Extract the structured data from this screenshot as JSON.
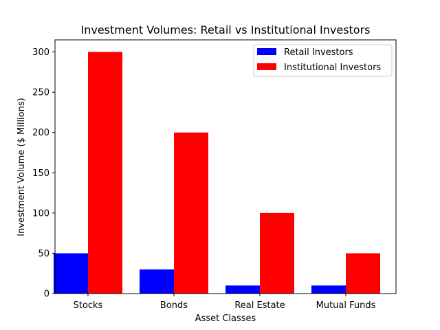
{
  "chart_data": {
    "type": "bar",
    "title": "Investment Volumes: Retail vs Institutional Investors",
    "xlabel": "Asset Classes",
    "ylabel": "Investment Volume ($ Millions)",
    "categories": [
      "Stocks",
      "Bonds",
      "Real Estate",
      "Mutual Funds"
    ],
    "series": [
      {
        "name": "Retail Investors",
        "values": [
          50,
          30,
          10,
          10
        ],
        "color": "#0000ff"
      },
      {
        "name": "Institutional Investors",
        "values": [
          300,
          200,
          100,
          50
        ],
        "color": "#ff0000"
      }
    ],
    "ylim": [
      0,
      315
    ],
    "yticks": [
      0,
      50,
      100,
      150,
      200,
      250,
      300
    ],
    "grid": false,
    "legend_position": "top-right"
  }
}
